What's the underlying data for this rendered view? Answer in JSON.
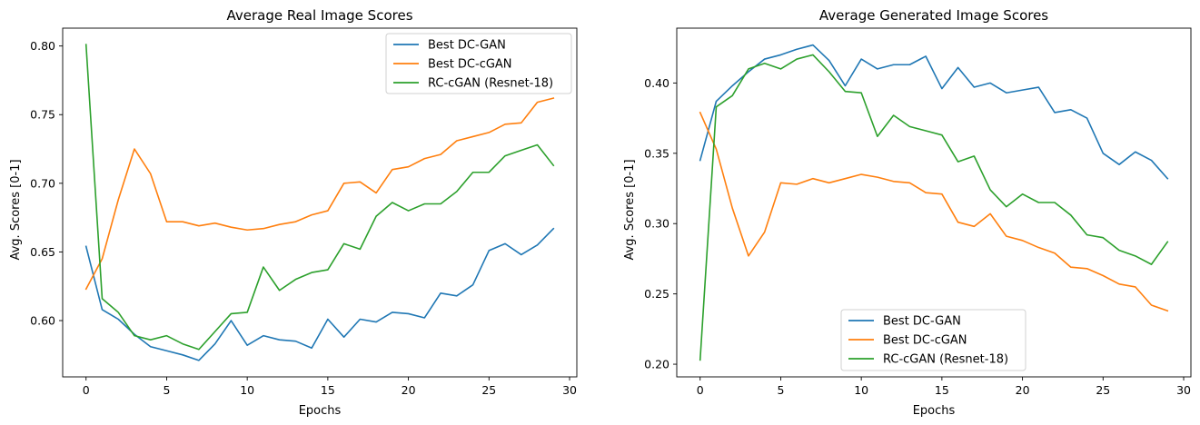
{
  "chart_data": [
    {
      "type": "line",
      "title": "Average Real Image Scores",
      "xlabel": "Epochs",
      "ylabel": "Avg. Scores [0-1]",
      "xlim": [
        -1.45,
        30.45
      ],
      "ylim": [
        0.559,
        0.813
      ],
      "xticks": [
        0,
        5,
        10,
        15,
        20,
        25,
        30
      ],
      "yticks": [
        0.6,
        0.65,
        0.7,
        0.75,
        0.8
      ],
      "ytick_labels": [
        "0.60",
        "0.65",
        "0.70",
        "0.75",
        "0.80"
      ],
      "legend_position": "upper-right",
      "grid": false,
      "x": [
        0,
        1,
        2,
        3,
        4,
        5,
        6,
        7,
        8,
        9,
        10,
        11,
        12,
        13,
        14,
        15,
        16,
        17,
        18,
        19,
        20,
        21,
        22,
        23,
        24,
        25,
        26,
        27,
        28,
        29
      ],
      "series": [
        {
          "name": "Best DC-GAN",
          "color": "#1f77b4",
          "values": [
            0.654,
            0.608,
            0.601,
            0.59,
            0.581,
            0.578,
            0.575,
            0.571,
            0.583,
            0.6,
            0.582,
            0.589,
            0.586,
            0.585,
            0.58,
            0.601,
            0.588,
            0.601,
            0.599,
            0.606,
            0.605,
            0.602,
            0.62,
            0.618,
            0.626,
            0.651,
            0.656,
            0.648,
            0.655,
            0.667
          ]
        },
        {
          "name": "Best DC-cGAN",
          "color": "#ff7f0e",
          "values": [
            0.623,
            0.645,
            0.688,
            0.725,
            0.707,
            0.672,
            0.672,
            0.669,
            0.671,
            0.668,
            0.666,
            0.667,
            0.67,
            0.672,
            0.677,
            0.68,
            0.7,
            0.701,
            0.693,
            0.71,
            0.712,
            0.718,
            0.721,
            0.731,
            0.734,
            0.737,
            0.743,
            0.744,
            0.759,
            0.762
          ]
        },
        {
          "name": "RC-cGAN (Resnet-18)",
          "color": "#2ca02c",
          "values": [
            0.801,
            0.616,
            0.606,
            0.589,
            0.586,
            0.589,
            0.583,
            0.579,
            0.592,
            0.605,
            0.606,
            0.639,
            0.622,
            0.63,
            0.635,
            0.637,
            0.656,
            0.652,
            0.676,
            0.686,
            0.68,
            0.685,
            0.685,
            0.694,
            0.708,
            0.708,
            0.72,
            0.724,
            0.728,
            0.713
          ]
        }
      ]
    },
    {
      "type": "line",
      "title": "Average Generated Image Scores",
      "xlabel": "Epochs",
      "ylabel": "Avg. Scores [0-1]",
      "xlim": [
        -1.45,
        30.45
      ],
      "ylim": [
        0.191,
        0.439
      ],
      "xticks": [
        0,
        5,
        10,
        15,
        20,
        25,
        30
      ],
      "yticks": [
        0.2,
        0.25,
        0.3,
        0.35,
        0.4
      ],
      "ytick_labels": [
        "0.20",
        "0.25",
        "0.30",
        "0.35",
        "0.40"
      ],
      "legend_position": "lower-center",
      "grid": false,
      "x": [
        0,
        1,
        2,
        3,
        4,
        5,
        6,
        7,
        8,
        9,
        10,
        11,
        12,
        13,
        14,
        15,
        16,
        17,
        18,
        19,
        20,
        21,
        22,
        23,
        24,
        25,
        26,
        27,
        28,
        29
      ],
      "series": [
        {
          "name": "Best DC-GAN",
          "color": "#1f77b4",
          "values": [
            0.345,
            0.387,
            0.398,
            0.408,
            0.417,
            0.42,
            0.424,
            0.427,
            0.416,
            0.398,
            0.417,
            0.41,
            0.413,
            0.413,
            0.419,
            0.396,
            0.411,
            0.397,
            0.4,
            0.393,
            0.395,
            0.397,
            0.379,
            0.381,
            0.375,
            0.35,
            0.342,
            0.351,
            0.345,
            0.332
          ]
        },
        {
          "name": "Best DC-cGAN",
          "color": "#ff7f0e",
          "values": [
            0.379,
            0.353,
            0.311,
            0.277,
            0.294,
            0.329,
            0.328,
            0.332,
            0.329,
            0.332,
            0.335,
            0.333,
            0.33,
            0.329,
            0.322,
            0.321,
            0.301,
            0.298,
            0.307,
            0.291,
            0.288,
            0.283,
            0.279,
            0.269,
            0.268,
            0.263,
            0.257,
            0.255,
            0.242,
            0.238
          ]
        },
        {
          "name": "RC-cGAN (Resnet-18)",
          "color": "#2ca02c",
          "values": [
            0.203,
            0.383,
            0.391,
            0.41,
            0.414,
            0.41,
            0.417,
            0.42,
            0.408,
            0.394,
            0.393,
            0.362,
            0.377,
            0.369,
            0.366,
            0.363,
            0.344,
            0.348,
            0.324,
            0.312,
            0.321,
            0.315,
            0.315,
            0.306,
            0.292,
            0.29,
            0.281,
            0.277,
            0.271,
            0.287
          ]
        }
      ]
    }
  ]
}
